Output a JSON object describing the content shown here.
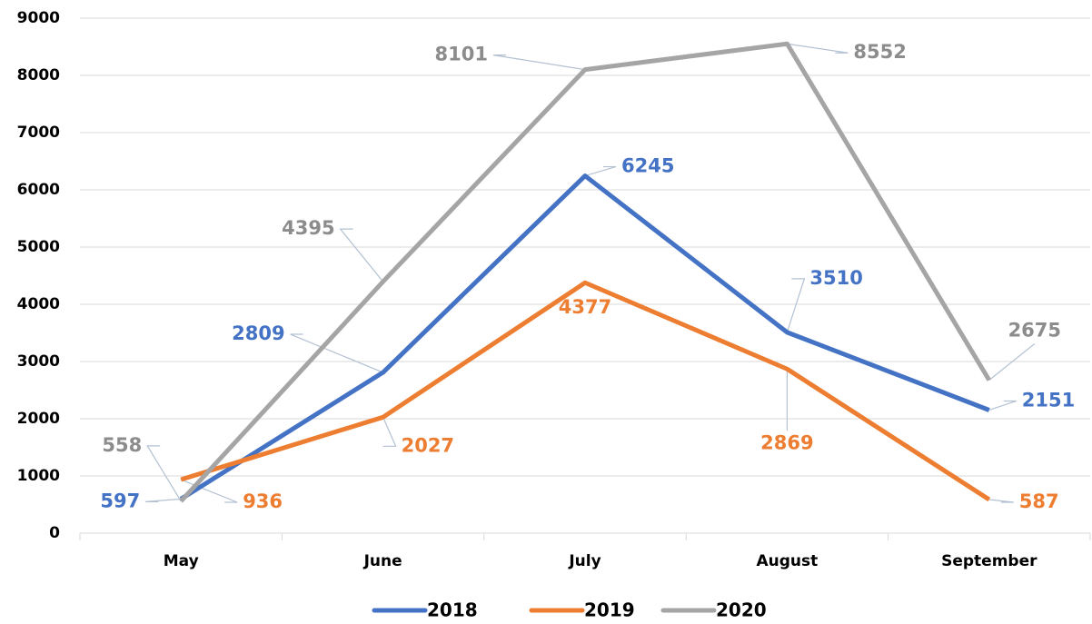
{
  "chart_data": {
    "type": "line",
    "categories": [
      "May",
      "June",
      "July",
      "August",
      "September"
    ],
    "series": [
      {
        "name": "2018",
        "color": "#4472c4",
        "values": [
          597,
          2809,
          6245,
          3510,
          2151
        ]
      },
      {
        "name": "2019",
        "color": "#ed7d31",
        "values": [
          936,
          2027,
          4377,
          2869,
          587
        ]
      },
      {
        "name": "2020",
        "color": "#a5a5a5",
        "values": [
          558,
          4395,
          8101,
          8552,
          2675
        ]
      }
    ],
    "ylim": [
      0,
      9000
    ],
    "yticks": [
      0,
      1000,
      2000,
      3000,
      4000,
      5000,
      6000,
      7000,
      8000,
      9000
    ],
    "grid": true,
    "legend": "bottom"
  }
}
